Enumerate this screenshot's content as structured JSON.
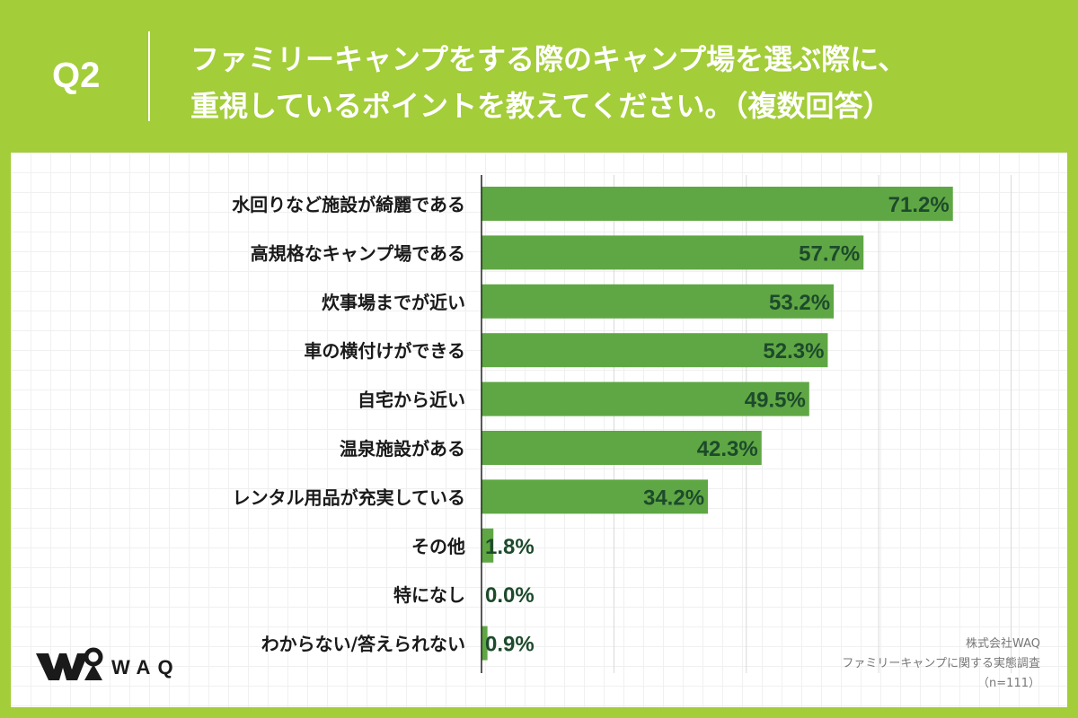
{
  "header": {
    "question_label": "Q2",
    "title_line1": "ファミリーキャンプをする際のキャンプ場を選ぶ際に、",
    "title_line2": "重視しているポイントを教えてください。（複数回答）"
  },
  "logo": {
    "text": "WAQ",
    "icon": "waq-logo-icon"
  },
  "source": {
    "company": "株式会社WAQ",
    "survey": "ファミリーキャンプに関する実態調査",
    "sample": "（n=111）"
  },
  "colors": {
    "background": "#a3cd39",
    "bar": "#5fa744",
    "value_text": "#1d4a2c",
    "label_text": "#1a1a1a"
  },
  "chart_data": {
    "type": "bar",
    "orientation": "horizontal",
    "categories": [
      "水回りなど施設が綺麗である",
      "高規格なキャンプ場である",
      "炊事場までが近い",
      "車の横付けができる",
      "自宅から近い",
      "温泉施設がある",
      "レンタル用品が充実している",
      "その他",
      "特になし",
      "わからない/答えられない"
    ],
    "values": [
      71.2,
      57.7,
      53.2,
      52.3,
      49.5,
      42.3,
      34.2,
      1.8,
      0.0,
      0.9
    ],
    "value_labels": [
      "71.2%",
      "57.7%",
      "53.2%",
      "52.3%",
      "49.5%",
      "42.3%",
      "34.2%",
      "1.8%",
      "0.0%",
      "0.9%"
    ],
    "xlim": [
      0,
      80
    ],
    "grid": true,
    "unit": "%"
  }
}
